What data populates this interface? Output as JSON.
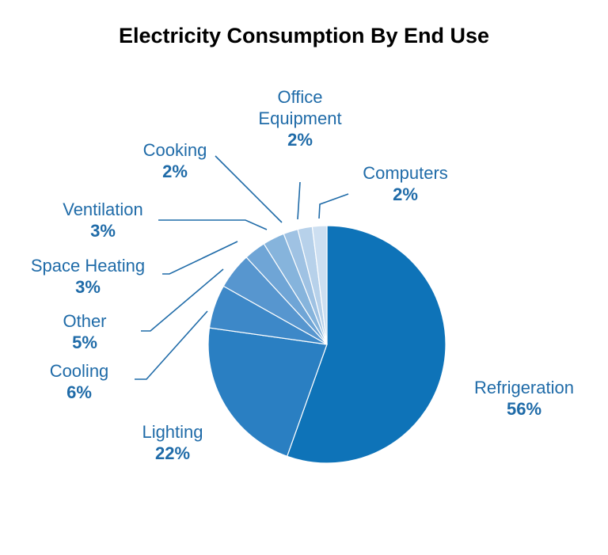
{
  "chart_data": {
    "type": "pie",
    "title": "Electricity Consumption By End Use",
    "slices": [
      {
        "label": "Refrigeration",
        "label_lines": [
          "Refrigeration"
        ],
        "value": 56,
        "value_label": "56%",
        "color": "#0e73b8"
      },
      {
        "label": "Lighting",
        "label_lines": [
          "Lighting"
        ],
        "value": 22,
        "value_label": "22%",
        "color": "#2a7fc2"
      },
      {
        "label": "Cooling",
        "label_lines": [
          "Cooling"
        ],
        "value": 6,
        "value_label": "6%",
        "color": "#3d88c8"
      },
      {
        "label": "Other",
        "label_lines": [
          "Other"
        ],
        "value": 5,
        "value_label": "5%",
        "color": "#5796cf"
      },
      {
        "label": "Space Heating",
        "label_lines": [
          "Space Heating"
        ],
        "value": 3,
        "value_label": "3%",
        "color": "#6fa5d6"
      },
      {
        "label": "Ventilation",
        "label_lines": [
          "Ventilation"
        ],
        "value": 3,
        "value_label": "3%",
        "color": "#86b4dc"
      },
      {
        "label": "Cooking",
        "label_lines": [
          "Cooking"
        ],
        "value": 2,
        "value_label": "2%",
        "color": "#9fc2e3"
      },
      {
        "label": "Office Equipment",
        "label_lines": [
          "Office",
          "Equipment"
        ],
        "value": 2,
        "value_label": "2%",
        "color": "#b7d1ea"
      },
      {
        "label": "Computers",
        "label_lines": [
          "Computers"
        ],
        "value": 2,
        "value_label": "2%",
        "color": "#cddff1"
      }
    ],
    "label_color": "#1f6ba8",
    "leader_color": "#1f6ba8"
  }
}
